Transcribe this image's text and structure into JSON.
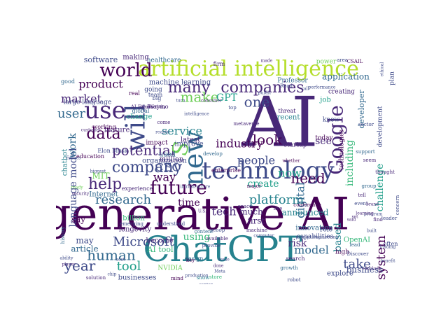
{
  "palette": [
    "#440154",
    "#482878",
    "#3e4a89",
    "#31688e",
    "#26828e",
    "#1f9e89",
    "#35b779",
    "#6ece58",
    "#b5de2b",
    "#fde725"
  ],
  "words": [
    {
      "text": "generative AI",
      "c": 0
    },
    {
      "text": "ChatGPT",
      "c": 4
    },
    {
      "text": "AI",
      "c": 1
    },
    {
      "text": "artificial intelligence",
      "c": 8
    },
    {
      "text": "technology",
      "c": 2
    },
    {
      "text": "new",
      "c": 3
    },
    {
      "text": "Google",
      "c": 1
    },
    {
      "text": "use",
      "c": 1
    },
    {
      "text": "will",
      "c": 2
    },
    {
      "text": "world",
      "c": 0
    },
    {
      "text": "companies",
      "c": 1
    },
    {
      "text": "future",
      "c": 0
    },
    {
      "text": "company",
      "c": 2
    },
    {
      "text": "potential",
      "c": 1
    },
    {
      "text": "many",
      "c": 1
    },
    {
      "text": "data",
      "c": 0
    },
    {
      "text": "make",
      "c": 7
    },
    {
      "text": "one",
      "c": 2
    },
    {
      "text": "look",
      "c": 0
    },
    {
      "text": "need",
      "c": 0
    },
    {
      "text": "help",
      "c": 1
    },
    {
      "text": "user",
      "c": 3
    },
    {
      "text": "Microsoft",
      "c": 2
    },
    {
      "text": "human",
      "c": 3
    },
    {
      "text": "year",
      "c": 2
    },
    {
      "text": "research",
      "c": 3
    },
    {
      "text": "tool",
      "c": 5
    },
    {
      "text": "platform",
      "c": 4
    },
    {
      "text": "industry",
      "c": 0
    },
    {
      "text": "tech",
      "c": 1
    },
    {
      "text": "now",
      "c": 5
    },
    {
      "text": "system",
      "c": 0
    },
    {
      "text": "model",
      "c": 3
    },
    {
      "text": "take",
      "c": 2
    },
    {
      "text": "S",
      "c": 7
    },
    {
      "text": "digital",
      "c": 3
    },
    {
      "text": "product",
      "c": 0
    },
    {
      "text": "market",
      "c": 1
    },
    {
      "text": "way",
      "c": 0
    },
    {
      "text": "service",
      "c": 4
    },
    {
      "text": "people",
      "c": 2
    },
    {
      "text": "time",
      "c": 0
    },
    {
      "text": "create",
      "c": 5
    },
    {
      "text": "CEO",
      "c": 2
    },
    {
      "text": "challenge",
      "c": 5
    },
    {
      "text": "including",
      "c": 6
    },
    {
      "text": "language model",
      "c": 2
    },
    {
      "text": "based",
      "c": 4
    },
    {
      "text": "work",
      "c": 3
    },
    {
      "text": "application",
      "c": 3
    },
    {
      "text": "using",
      "c": 6
    },
    {
      "text": "see",
      "c": 1
    },
    {
      "text": "first",
      "c": 1
    },
    {
      "text": "announced",
      "c": 4
    },
    {
      "text": "business",
      "c": 2
    },
    {
      "text": "say",
      "c": 0
    },
    {
      "text": "much",
      "c": 1
    },
    {
      "text": "innovation",
      "c": 3
    },
    {
      "text": "risk",
      "c": 1
    },
    {
      "text": "article",
      "c": 3
    },
    {
      "text": "healthcare",
      "c": 3
    },
    {
      "text": "software",
      "c": 2
    },
    {
      "text": "making",
      "c": 1
    },
    {
      "text": "machine learning",
      "c": 2
    },
    {
      "text": "large language",
      "c": 2
    },
    {
      "text": "organization",
      "c": 2
    },
    {
      "text": "feature",
      "c": 1
    },
    {
      "text": "MIT",
      "c": 7
    },
    {
      "text": "Internet",
      "c": 3
    },
    {
      "text": "billion",
      "c": 6
    },
    {
      "text": "AI tool",
      "c": 6
    },
    {
      "text": "become",
      "c": 1
    },
    {
      "text": "longevity",
      "c": 1
    },
    {
      "text": "may",
      "c": 2
    },
    {
      "text": "businesses",
      "c": 2
    },
    {
      "text": "NVIDIA",
      "c": 7
    },
    {
      "text": "improve",
      "c": 2
    },
    {
      "text": "million",
      "c": 1
    },
    {
      "text": "latest",
      "c": 1
    },
    {
      "text": "impact",
      "c": 0
    },
    {
      "text": "used",
      "c": 3
    },
    {
      "text": "change",
      "c": 5
    },
    {
      "text": "global",
      "c": 3
    },
    {
      "text": "Elon Musk",
      "c": 2
    },
    {
      "text": "chatbot",
      "c": 4
    },
    {
      "text": "education",
      "c": 0
    },
    {
      "text": "experience",
      "c": 1
    },
    {
      "text": "GPT",
      "c": 5
    },
    {
      "text": "recent",
      "c": 4
    },
    {
      "text": "know",
      "c": 2
    },
    {
      "text": "job",
      "c": 5
    },
    {
      "text": "creating",
      "c": 1
    },
    {
      "text": "today",
      "c": 0
    },
    {
      "text": "startup",
      "c": 1
    },
    {
      "text": "developer",
      "c": 3
    },
    {
      "text": "role",
      "c": 2
    },
    {
      "text": "capabilities",
      "c": 2
    },
    {
      "text": "enterprise",
      "c": 0
    },
    {
      "text": "OpenAI",
      "c": 6
    },
    {
      "text": "explore",
      "c": 2
    },
    {
      "text": "power",
      "c": 7
    },
    {
      "text": "firm",
      "c": 1
    },
    {
      "text": "Professor",
      "c": 3
    },
    {
      "text": "development",
      "c": 2
    },
    {
      "text": "technologies",
      "c": 0
    },
    {
      "text": "Waymo",
      "c": 1
    },
    {
      "text": "going",
      "c": 2
    },
    {
      "text": "real",
      "c": 0
    },
    {
      "text": "team",
      "c": 2
    },
    {
      "text": "productivity",
      "c": 1
    },
    {
      "text": "AI Ethics",
      "c": 1
    },
    {
      "text": "working",
      "c": 0
    },
    {
      "text": "customer",
      "c": 1
    },
    {
      "text": "prompt engineering",
      "c": 2
    },
    {
      "text": "whether",
      "c": 0
    },
    {
      "text": "public",
      "c": 2
    },
    {
      "text": "design",
      "c": 3
    },
    {
      "text": "event",
      "c": 2
    },
    {
      "text": "key",
      "c": 0
    },
    {
      "text": "Meta",
      "c": 2
    },
    {
      "text": "growth",
      "c": 3
    },
    {
      "text": "search",
      "c": 1
    },
    {
      "text": "high",
      "c": 0
    },
    {
      "text": "Discover",
      "c": 2
    },
    {
      "text": "lead",
      "c": 3
    },
    {
      "text": "often",
      "c": 2
    },
    {
      "text": "robot",
      "c": 2
    },
    {
      "text": "available",
      "c": 1
    },
    {
      "text": "scoop",
      "c": 2
    },
    {
      "text": "provide",
      "c": 2
    },
    {
      "text": "content",
      "c": 3
    },
    {
      "text": "emerging",
      "c": 2
    },
    {
      "text": "understand",
      "c": 2
    },
    {
      "text": "solution",
      "c": 1
    },
    {
      "text": "chip",
      "c": 2
    },
    {
      "text": "show",
      "c": 4
    },
    {
      "text": "mind",
      "c": 0
    },
    {
      "text": "store",
      "c": 6
    },
    {
      "text": "CSAIL",
      "c": 0
    },
    {
      "text": "plan",
      "c": 2
    },
    {
      "text": "ethical",
      "c": 2
    },
    {
      "text": "made",
      "c": 1
    },
    {
      "text": "area",
      "c": 2
    },
    {
      "text": "Read",
      "c": 2
    },
    {
      "text": "performance",
      "c": 2
    },
    {
      "text": "consumer",
      "c": 1
    },
    {
      "text": "top",
      "c": 2
    },
    {
      "text": "threat",
      "c": 1
    },
    {
      "text": "metaverse",
      "c": 1
    },
    {
      "text": "space",
      "c": 1
    },
    {
      "text": "live",
      "c": 1
    },
    {
      "text": "major",
      "c": 0
    },
    {
      "text": "machine",
      "c": 1
    },
    {
      "text": "conference",
      "c": 0
    },
    {
      "text": "sector",
      "c": 2
    },
    {
      "text": "support",
      "c": 3
    },
    {
      "text": "seem",
      "c": 1
    },
    {
      "text": "thought",
      "c": 1
    },
    {
      "text": "group",
      "c": 3
    },
    {
      "text": "tell",
      "c": 1
    },
    {
      "text": "said",
      "c": 1
    },
    {
      "text": "+include",
      "c": 1
    },
    {
      "text": "benefit",
      "c": 2
    },
    {
      "text": "leading",
      "c": 2
    },
    {
      "text": "built",
      "c": 2
    },
    {
      "text": "find",
      "c": 1
    },
    {
      "text": "leader",
      "c": 2
    },
    {
      "text": "set",
      "c": 1
    },
    {
      "text": "program",
      "c": 2
    },
    {
      "text": "learning",
      "c": 1
    },
    {
      "text": "brand",
      "c": 1
    },
    {
      "text": "concern",
      "c": 2
    },
    {
      "text": "security",
      "c": 1
    },
    {
      "text": "good",
      "c": 3
    },
    {
      "text": "history",
      "c": 3
    },
    {
      "text": "ability",
      "c": 2
    },
    {
      "text": "player",
      "c": 1
    },
    {
      "text": "U.S.",
      "c": 1
    },
    {
      "text": "Forbes",
      "c": 2
    },
    {
      "text": "biggest",
      "c": 2
    },
    {
      "text": "ready",
      "c": 7
    },
    {
      "text": "big",
      "c": 2
    },
    {
      "text": "turn",
      "c": 2
    },
    {
      "text": "reality",
      "c": 2
    },
    {
      "text": "come",
      "c": 1
    },
    {
      "text": "infrastructure",
      "c": 2
    },
    {
      "text": "computer",
      "c": 2
    },
    {
      "text": "issue",
      "c": 2
    },
    {
      "text": "done",
      "c": 1
    },
    {
      "text": "production",
      "c": 2
    },
    {
      "text": "center",
      "c": 2
    },
    {
      "text": "cost",
      "c": 2
    },
    {
      "text": "call",
      "c": 2
    },
    {
      "text": "intelligence",
      "c": 2
    },
    {
      "text": "develop",
      "c": 3
    }
  ]
}
